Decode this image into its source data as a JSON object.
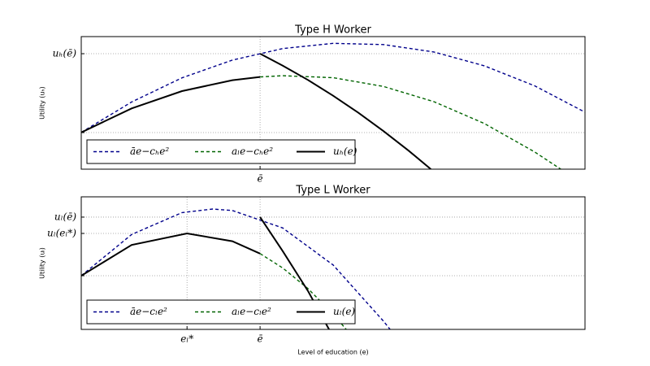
{
  "chart_data": [
    {
      "type": "line",
      "title": "Type H Worker",
      "ylabel": "Utility (uₕ)",
      "xlim": [
        0,
        10
      ],
      "ylim": [
        0,
        10
      ],
      "xticks": [
        {
          "value": 3.55,
          "label": "ē"
        }
      ],
      "yticks": [
        {
          "value": 2.76,
          "label": null
        },
        {
          "value": 8.71,
          "label": "uₕ(ē)"
        }
      ],
      "grid": true,
      "legend": "lower left",
      "series": [
        {
          "name": "āe−cₕe²",
          "color": "#00008b",
          "style": "dashed",
          "x": [
            0,
            1,
            2,
            3,
            4,
            5,
            6,
            7,
            8,
            9,
            10
          ],
          "values": [
            2.77,
            5.07,
            6.89,
            8.23,
            9.1,
            9.49,
            9.4,
            8.84,
            7.8,
            6.29,
            4.3
          ]
        },
        {
          "name": "aₗe−cₕe²",
          "color": "#006400",
          "style": "dashed",
          "x": [
            3.55,
            4,
            5,
            6,
            7,
            8,
            9,
            9.52
          ],
          "values": [
            6.96,
            7.05,
            6.9,
            6.24,
            5.09,
            3.45,
            1.3,
            0
          ]
        },
        {
          "name": "uₕ(e)",
          "color": "#000000",
          "style": "solid",
          "x": [
            0,
            1,
            2,
            3,
            3.55,
            null,
            3.55,
            4,
            4.5,
            5,
            5.5,
            6,
            6.5,
            6.94
          ],
          "values": [
            2.77,
            4.58,
            5.89,
            6.71,
            6.96,
            null,
            8.71,
            7.81,
            6.73,
            5.54,
            4.26,
            2.87,
            1.39,
            0
          ]
        }
      ]
    },
    {
      "type": "line",
      "title": "Type L Worker",
      "ylabel": "Utility (uₗ)",
      "xlabel": "Level of education (e)",
      "xlim": [
        0,
        10
      ],
      "ylim": [
        0,
        10
      ],
      "xticks": [
        {
          "value": 2.1,
          "label": "eₗ*"
        },
        {
          "value": 3.55,
          "label": "ē"
        }
      ],
      "yticks": [
        {
          "value": 4.05,
          "label": null
        },
        {
          "value": 7.24,
          "label": "uₗ(eₗ*)"
        },
        {
          "value": 8.47,
          "label": "uₗ(ē)"
        }
      ],
      "grid": true,
      "legend": "lower left",
      "series": [
        {
          "name": "āe−cₗe²",
          "color": "#00008b",
          "style": "dashed",
          "x": [
            0,
            1,
            2,
            2.61,
            3,
            4,
            5,
            6,
            6.13
          ],
          "values": [
            4.05,
            7.16,
            8.81,
            9.08,
            8.97,
            7.65,
            4.86,
            0.62,
            0
          ]
        },
        {
          "name": "aₗe−cₗe²",
          "color": "#006400",
          "style": "dashed",
          "x": [
            3.55,
            4,
            4.5,
            5,
            5.26
          ],
          "values": [
            5.72,
            4.63,
            3.08,
            1.16,
            0
          ]
        },
        {
          "name": "uₗ(e)",
          "color": "#000000",
          "style": "solid",
          "x": [
            0,
            1,
            2.1,
            3,
            3.55,
            null,
            3.55,
            4,
            4.5,
            4.92
          ],
          "values": [
            4.05,
            6.37,
            7.24,
            6.65,
            5.72,
            null,
            8.47,
            5.9,
            2.9,
            0
          ]
        }
      ]
    }
  ]
}
